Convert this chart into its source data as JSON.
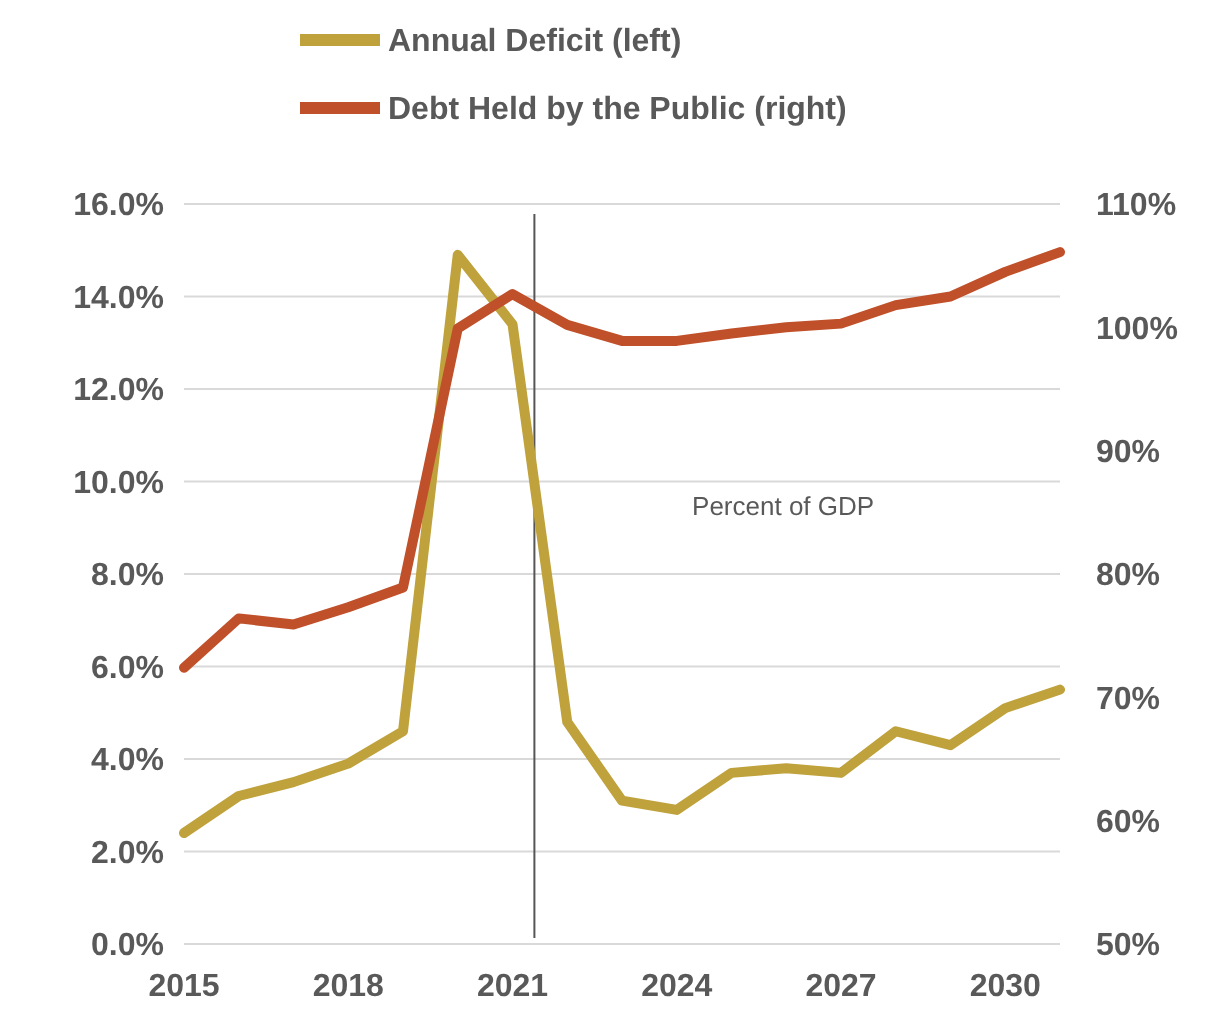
{
  "chart_data": {
    "type": "line",
    "x": [
      2015,
      2016,
      2017,
      2018,
      2019,
      2020,
      2021,
      2022,
      2023,
      2024,
      2025,
      2026,
      2027,
      2028,
      2029,
      2030,
      2031
    ],
    "series": [
      {
        "name": "Annual Deficit (left)",
        "color": "#bfa23c",
        "values": [
          2.4,
          3.2,
          3.5,
          3.9,
          4.6,
          14.9,
          13.4,
          4.8,
          3.1,
          2.9,
          3.7,
          3.8,
          3.7,
          4.6,
          4.3,
          5.1,
          5.5
        ]
      },
      {
        "name": "Debt Held by the Public (right)",
        "color": "#c0502a",
        "axis": "y2",
        "values": [
          72.4,
          76.4,
          75.9,
          77.3,
          78.9,
          99.9,
          102.7,
          100.2,
          98.9,
          98.9,
          99.5,
          100,
          100.3,
          101.8,
          102.5,
          104.5,
          106.1
        ]
      }
    ],
    "xlim": [
      2015,
      2031
    ],
    "xticks": [
      2015,
      2018,
      2021,
      2024,
      2027,
      2030
    ],
    "ylim": [
      0,
      16
    ],
    "yticks": [
      {
        "value": 0,
        "label": "0.0%"
      },
      {
        "value": 2,
        "label": "2.0%"
      },
      {
        "value": 4,
        "label": "4.0%"
      },
      {
        "value": 6,
        "label": "6.0%"
      },
      {
        "value": 8,
        "label": "8.0%"
      },
      {
        "value": 10,
        "label": "10.0%"
      },
      {
        "value": 12,
        "label": "12.0%"
      },
      {
        "value": 14,
        "label": "14.0%"
      },
      {
        "value": 16,
        "label": "16.0%"
      }
    ],
    "y2lim": [
      50,
      110
    ],
    "y2ticks": [
      {
        "value": 50,
        "label": "50%"
      },
      {
        "value": 60,
        "label": "60%"
      },
      {
        "value": 70,
        "label": "70%"
      },
      {
        "value": 80,
        "label": "80%"
      },
      {
        "value": 90,
        "label": "90%"
      },
      {
        "value": 100,
        "label": "100%"
      },
      {
        "value": 110,
        "label": "110%"
      }
    ],
    "ref_lines": [
      {
        "axis": "x",
        "value": 2021.4,
        "color": "#555555"
      }
    ],
    "annotations": [
      "Percent of GDP"
    ],
    "grid": "y",
    "legend": "top",
    "marker": "none",
    "line_style": "solid"
  }
}
